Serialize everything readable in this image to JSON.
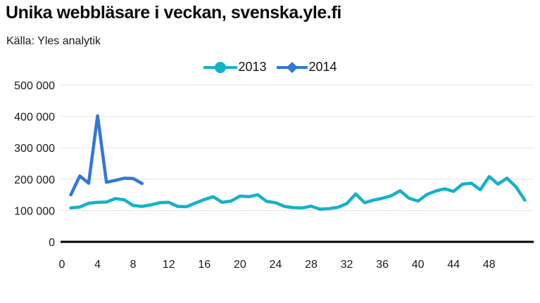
{
  "header": {
    "title": "Unika webbläsare i veckan, svenska.yle.fi",
    "source": "Källa: Yles analytik"
  },
  "chart_data": {
    "type": "line",
    "title": "Unika webbläsare i veckan, svenska.yle.fi",
    "subtitle": "Källa: Yles analytik",
    "xlabel": "",
    "ylabel": "",
    "x_unit": "week-of-year",
    "xlim": [
      0,
      53
    ],
    "ylim": [
      0,
      500000
    ],
    "grid": "horizontal",
    "legend_position": "top-center",
    "y_ticks": [
      0,
      100000,
      200000,
      300000,
      400000,
      500000
    ],
    "y_tick_labels": [
      "0",
      "100 000",
      "200 000",
      "300 000",
      "400 000",
      "500 000"
    ],
    "x_ticks": [
      0,
      4,
      8,
      12,
      16,
      20,
      24,
      28,
      32,
      36,
      40,
      44,
      48
    ],
    "axis_color": "#000000",
    "gridline_color": "#e5e5e5",
    "series": [
      {
        "name": "2013",
        "color": "#14b2c8",
        "marker": "circle",
        "x": [
          1,
          2,
          3,
          4,
          5,
          6,
          7,
          8,
          9,
          10,
          11,
          12,
          13,
          14,
          15,
          16,
          17,
          18,
          19,
          20,
          21,
          22,
          23,
          24,
          25,
          26,
          27,
          28,
          29,
          30,
          31,
          32,
          33,
          34,
          35,
          36,
          37,
          38,
          39,
          40,
          41,
          42,
          43,
          44,
          45,
          46,
          47,
          48,
          49,
          50,
          51,
          52
        ],
        "values": [
          108000,
          111000,
          123000,
          126000,
          127000,
          138000,
          134000,
          116000,
          113000,
          118000,
          125000,
          126000,
          113000,
          112000,
          124000,
          135000,
          144000,
          126000,
          130000,
          146000,
          144000,
          150000,
          129000,
          125000,
          113000,
          109000,
          108000,
          114000,
          104000,
          106000,
          110000,
          122000,
          153000,
          125000,
          133000,
          139000,
          147000,
          163000,
          139000,
          130000,
          151000,
          162000,
          169000,
          161000,
          184000,
          187000,
          166000,
          208000,
          184000,
          203000,
          176000,
          133000
        ]
      },
      {
        "name": "2014",
        "color": "#3178d8",
        "marker": "diamond",
        "x": [
          1,
          2,
          3,
          4,
          5,
          6,
          7,
          8,
          9
        ],
        "values": [
          150000,
          210000,
          187000,
          402000,
          190000,
          196000,
          203000,
          202000,
          186000
        ]
      }
    ]
  }
}
